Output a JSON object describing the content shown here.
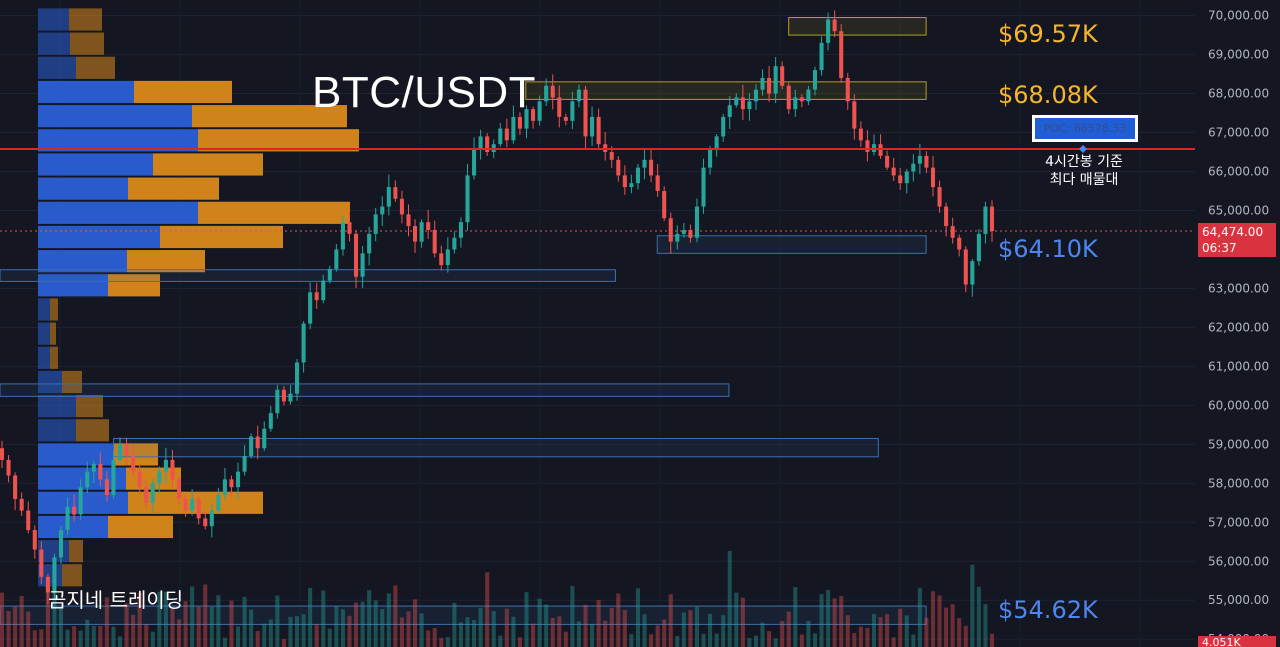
{
  "title": "BTC/USDT",
  "watermark": "곰지네 트레이딩",
  "level_labels": [
    {
      "text": "$69.57K",
      "color": "#f7b529"
    },
    {
      "text": "$68.08K",
      "color": "#f7b529"
    },
    {
      "text": "$64.10K",
      "color": "#4d86f0"
    },
    {
      "text": "$54.62K",
      "color": "#4d86f0"
    }
  ],
  "poc": {
    "label": "POC: 66578.33",
    "note_line1": "4시간봉 기준",
    "note_line2": "최다 매물대",
    "price": 66578.33
  },
  "last_price": {
    "value": "64,474.00",
    "countdown": "06:37"
  },
  "volume_tag": "4.051K",
  "colors": {
    "background": "#141722",
    "up": "#26a69a",
    "down": "#ef5350",
    "poc_line": "#e02424",
    "profile_blue": "#2a5fd6",
    "profile_orange": "#d9891a"
  },
  "chart_data": {
    "type": "candlestick",
    "title": "BTC/USDT",
    "timeframe": "4시간봉",
    "y_axis": {
      "ylim": [
        53800,
        70400
      ],
      "ticks": [
        "70,000.00",
        "69,000.00",
        "68,000.00",
        "67,000.00",
        "66,000.00",
        "65,000.00",
        "63,000.00",
        "62,000.00",
        "61,000.00",
        "60,000.00",
        "59,000.00",
        "58,000.00",
        "57,000.00",
        "56,000.00",
        "55,000.00",
        "54,000.00"
      ]
    },
    "grid": true,
    "key_levels": [
      69570,
      68080,
      66578.33,
      64100,
      54620
    ],
    "price_zones": [
      {
        "low": 69500,
        "high": 69950,
        "color": "#b5a020",
        "start_frac": 0.66,
        "end_frac": 0.775
      },
      {
        "low": 67850,
        "high": 68300,
        "color": "#b5a020",
        "start_frac": 0.44,
        "end_frac": 0.775
      },
      {
        "low": 63900,
        "high": 64350,
        "color": "#3b6fb0",
        "start_frac": 0.55,
        "end_frac": 0.775
      },
      {
        "low": 63180,
        "high": 63480,
        "color": "#3b6fb0",
        "start_frac": 0.0,
        "end_frac": 0.515
      },
      {
        "low": 60230,
        "high": 60550,
        "color": "#3b6fb0",
        "start_frac": 0.0,
        "end_frac": 0.61
      },
      {
        "low": 58680,
        "high": 59150,
        "color": "#3b6fb0",
        "start_frac": 0.095,
        "end_frac": 0.735
      },
      {
        "low": 54380,
        "high": 54850,
        "color": "#3b6fb0",
        "start_frac": 0.0,
        "end_frac": 0.775
      }
    ],
    "close_series": [
      58600,
      58200,
      57600,
      57300,
      56800,
      56300,
      55600,
      55200,
      56100,
      56800,
      57400,
      57200,
      57900,
      58300,
      58500,
      58100,
      57700,
      58600,
      59000,
      58700,
      58300,
      57900,
      57500,
      58000,
      58300,
      58600,
      58100,
      57600,
      57300,
      57600,
      57100,
      56900,
      57300,
      57700,
      58100,
      57900,
      58300,
      58700,
      59200,
      58900,
      59400,
      59800,
      60400,
      60100,
      60300,
      61100,
      62100,
      62900,
      62700,
      63200,
      63500,
      64000,
      64700,
      64400,
      63300,
      63900,
      64400,
      64900,
      65100,
      65600,
      65300,
      64900,
      64600,
      64200,
      64700,
      64500,
      63900,
      63600,
      64000,
      64300,
      64700,
      65900,
      66600,
      66900,
      66500,
      66700,
      67100,
      66800,
      67400,
      67100,
      67600,
      67300,
      67800,
      68200,
      67900,
      67400,
      67300,
      67800,
      68100,
      66900,
      67400,
      66700,
      66500,
      66300,
      65900,
      65600,
      65700,
      66100,
      66300,
      65900,
      65500,
      64800,
      64200,
      64400,
      64500,
      64300,
      65100,
      66100,
      66600,
      66900,
      67400,
      67700,
      67900,
      67600,
      67800,
      68100,
      68400,
      68000,
      68700,
      68200,
      67600,
      67900,
      67800,
      68100,
      68600,
      69300,
      69900,
      69600,
      68400,
      67800,
      67100,
      66800,
      66500,
      66700,
      66400,
      66100,
      65900,
      65700,
      66000,
      66200,
      66400,
      66100,
      65600,
      65100,
      64600,
      64300,
      64000,
      63100,
      63700,
      64400,
      65100,
      64474
    ],
    "volume_profile_rows": [
      {
        "price": 69900,
        "buy": 31,
        "sell": 33
      },
      {
        "price": 69280,
        "buy": 32,
        "sell": 34
      },
      {
        "price": 68660,
        "buy": 38,
        "sell": 39
      },
      {
        "price": 68040,
        "buy": 96,
        "sell": 98
      },
      {
        "price": 67420,
        "buy": 154,
        "sell": 155
      },
      {
        "price": 66800,
        "buy": 160,
        "sell": 161
      },
      {
        "price": 66180,
        "buy": 115,
        "sell": 110
      },
      {
        "price": 65560,
        "buy": 90,
        "sell": 91
      },
      {
        "price": 64940,
        "buy": 160,
        "sell": 152
      },
      {
        "price": 64320,
        "buy": 122,
        "sell": 123
      },
      {
        "price": 63700,
        "buy": 89,
        "sell": 78
      },
      {
        "price": 63080,
        "buy": 70,
        "sell": 52
      },
      {
        "price": 62460,
        "buy": 12,
        "sell": 8
      },
      {
        "price": 61840,
        "buy": 12,
        "sell": 6
      },
      {
        "price": 61220,
        "buy": 12,
        "sell": 8
      },
      {
        "price": 60600,
        "buy": 24,
        "sell": 20
      },
      {
        "price": 59980,
        "buy": 38,
        "sell": 27
      },
      {
        "price": 59360,
        "buy": 38,
        "sell": 33
      },
      {
        "price": 58740,
        "buy": 75,
        "sell": 45
      },
      {
        "price": 58120,
        "buy": 88,
        "sell": 55
      },
      {
        "price": 57500,
        "buy": 90,
        "sell": 135
      },
      {
        "price": 56880,
        "buy": 70,
        "sell": 65
      },
      {
        "price": 56260,
        "buy": 31,
        "sell": 14
      },
      {
        "price": 55640,
        "buy": 24,
        "sell": 20
      }
    ]
  }
}
